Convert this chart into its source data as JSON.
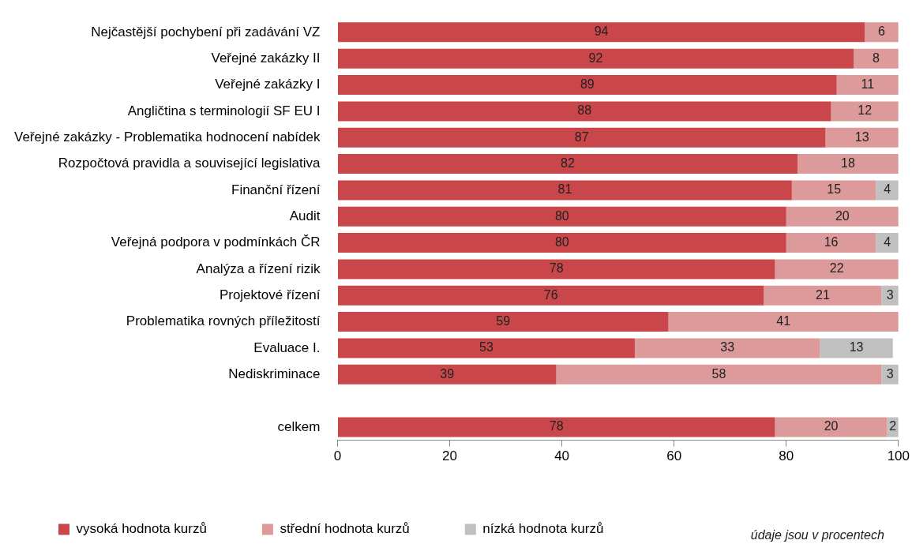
{
  "chart_data": {
    "type": "bar",
    "orientation": "horizontal",
    "stacked": true,
    "categories": [
      "Nejčastější pochybení při zadávání VZ",
      "Veřejné zakázky II",
      "Veřejné zakázky I",
      "Angličtina s terminologií SF EU I",
      "Veřejné zakázky - Problematika hodnocení nabídek",
      "Rozpočtová pravidla a související legislativa",
      "Finanční řízení",
      "Audit",
      "Veřejná podpora v podmínkách ČR",
      "Analýza a řízení rizik",
      "Projektové řízení",
      "Problematika rovných příležitostí",
      "Evaluace I.",
      "Nediskriminace",
      null,
      "celkem"
    ],
    "series": [
      {
        "name": "vysoká hodnota kurzů",
        "color": "#c9474a",
        "values": [
          94,
          92,
          89,
          88,
          87,
          82,
          81,
          80,
          80,
          78,
          76,
          59,
          53,
          39,
          null,
          78
        ]
      },
      {
        "name": "střední hodnota kurzů",
        "color": "#dc9a9a",
        "values": [
          6,
          8,
          11,
          12,
          13,
          18,
          15,
          20,
          16,
          22,
          21,
          41,
          33,
          58,
          null,
          20
        ]
      },
      {
        "name": "nízká hodnota kurzů",
        "color": "#c0c0c0",
        "values": [
          null,
          null,
          null,
          null,
          null,
          null,
          4,
          null,
          4,
          null,
          3,
          null,
          13,
          3,
          null,
          2
        ]
      }
    ],
    "xlim": [
      0,
      100
    ],
    "xticks": [
      0,
      20,
      40,
      60,
      80,
      100
    ],
    "data_labels": true,
    "legend": "bottom left",
    "annotations": [
      "údaje jsou v procentech"
    ]
  }
}
